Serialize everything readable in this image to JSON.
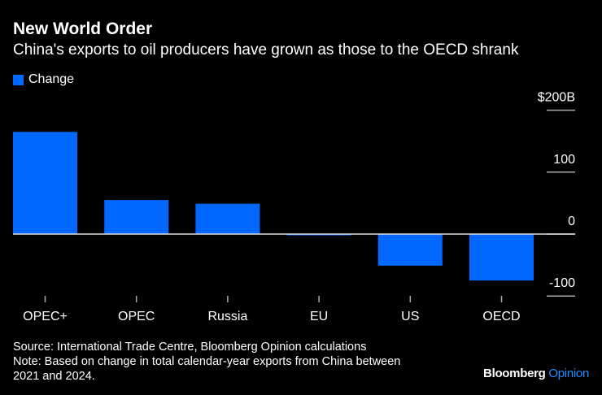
{
  "title": "New World Order",
  "subtitle": "China's exports to oil producers have grown as those to the OECD shrank",
  "footer": {
    "source": "Source: International Trade Centre, Bloomberg Opinion calculations",
    "note1": "Note: Based on change in total calendar-year exports from China between",
    "note2": "2021 and 2024."
  },
  "brand": {
    "name": "Bloomberg",
    "sub": "Opinion"
  },
  "colors": {
    "bar": "#0068ff",
    "axis": "#ffffff"
  },
  "chart_data": {
    "type": "bar",
    "title": "New World Order",
    "categories": [
      "OPEC+",
      "OPEC",
      "Russia",
      "EU",
      "US",
      "OECD"
    ],
    "series": [
      {
        "name": "Change",
        "values": [
          165,
          55,
          49,
          -2,
          -51,
          -75
        ]
      }
    ],
    "ylim": [
      -100,
      200
    ],
    "yticks": [
      200,
      100,
      0,
      -100
    ],
    "ytick_labels": [
      "$200B",
      "100",
      "0",
      "-100"
    ],
    "xlabel": "",
    "ylabel": "",
    "legend": "top-left",
    "grid": false
  }
}
